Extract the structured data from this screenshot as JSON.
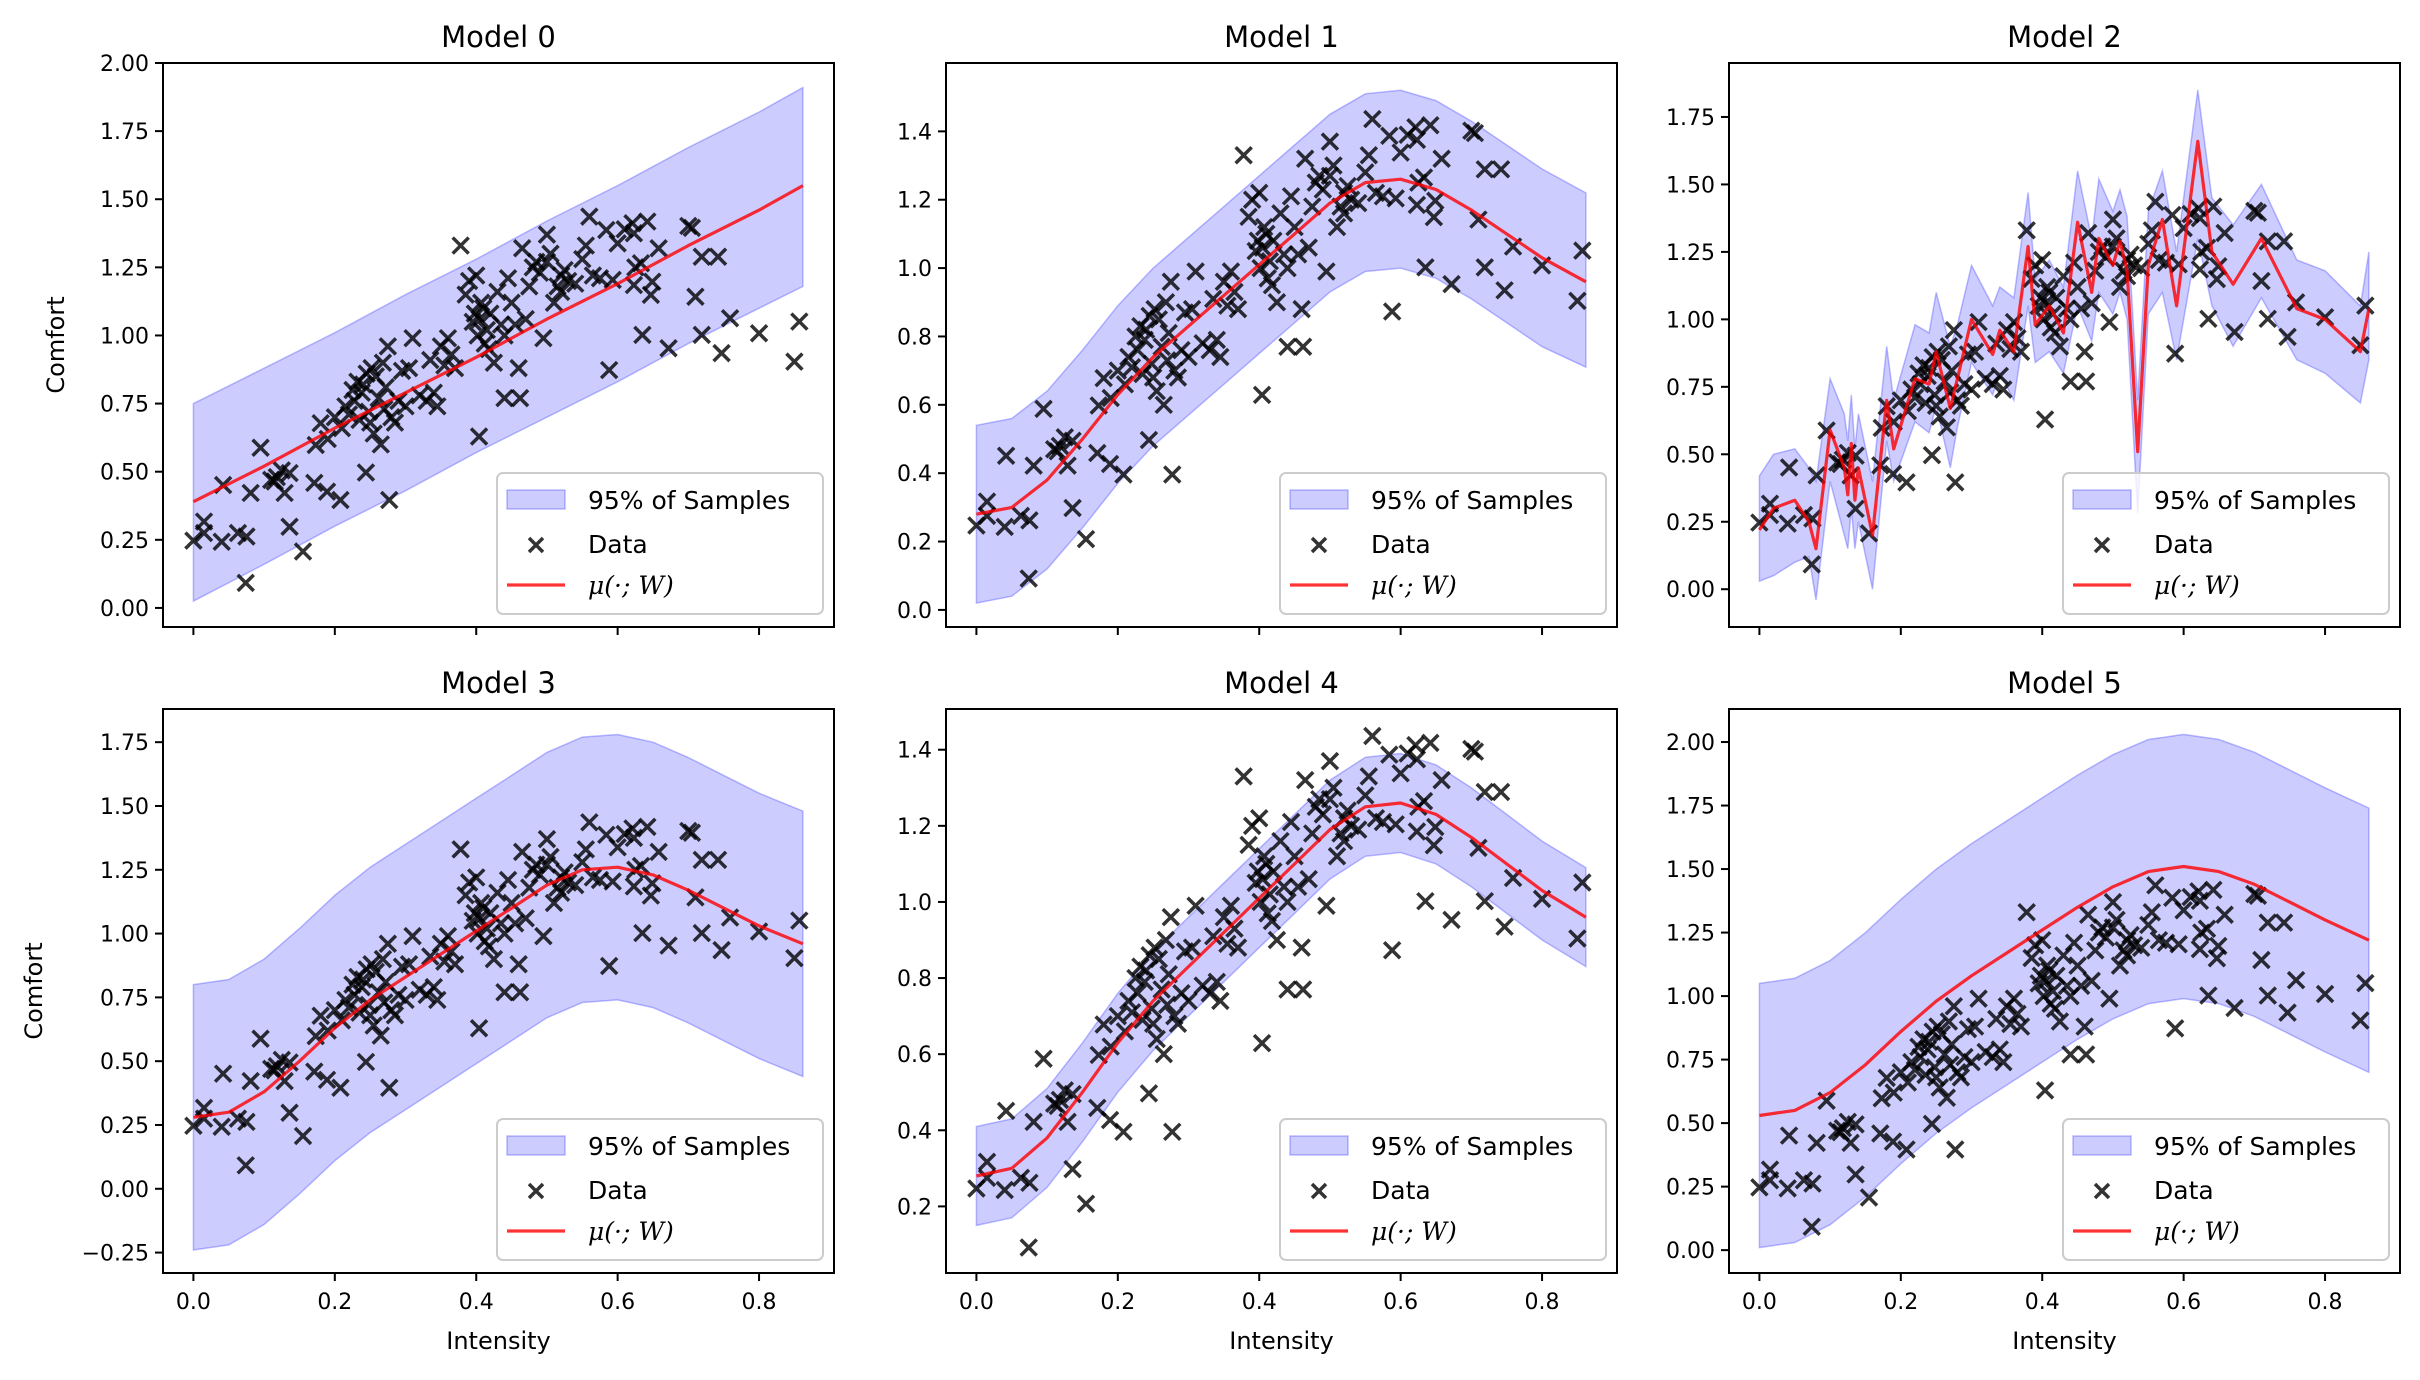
{
  "figure": {
    "type": "multi-panel scatter with mean line and 95% band",
    "xlabel": "Intensity",
    "ylabel": "Comfort"
  },
  "legend_labels": {
    "band": "95% of Samples",
    "data": "Data",
    "mean": "μ(·; W)"
  },
  "colors": {
    "band_fill": "#0000ff",
    "band_alpha": 0.2,
    "mean_line": "#ff0000",
    "data_marker": "#000000"
  },
  "chart_data": [
    {
      "type": "line",
      "title": "Model 0",
      "xlabel": "",
      "ylabel": "Comfort",
      "xlim": [
        -0.043,
        0.906
      ],
      "ylim": [
        -0.07,
        2.0
      ],
      "xticks": [
        0.0,
        0.2,
        0.4,
        0.6,
        0.8
      ],
      "xticklabels_visible": false,
      "yticks": [
        0.0,
        0.25,
        0.5,
        0.75,
        1.0,
        1.25,
        1.5,
        1.75,
        2.0
      ],
      "yticklabels": [
        "0.00",
        "0.25",
        "0.50",
        "0.75",
        "1.00",
        "1.25",
        "1.50",
        "1.75",
        "2.00"
      ],
      "legend": "lower-right",
      "curve": {
        "x": [
          0.0,
          0.1,
          0.2,
          0.3,
          0.4,
          0.5,
          0.6,
          0.7,
          0.8,
          0.862
        ],
        "mean": [
          0.39,
          0.52,
          0.66,
          0.79,
          0.92,
          1.06,
          1.19,
          1.33,
          1.46,
          1.55
        ],
        "lo": [
          0.025,
          0.16,
          0.3,
          0.43,
          0.57,
          0.7,
          0.83,
          0.97,
          1.1,
          1.18
        ],
        "hi": [
          0.75,
          0.88,
          1.01,
          1.15,
          1.28,
          1.42,
          1.55,
          1.69,
          1.82,
          1.91
        ]
      }
    },
    {
      "type": "line",
      "title": "Model 1",
      "xlabel": "",
      "ylabel": "",
      "xlim": [
        -0.043,
        0.906
      ],
      "ylim": [
        -0.05,
        1.6
      ],
      "xticks": [
        0.0,
        0.2,
        0.4,
        0.6,
        0.8
      ],
      "xticklabels_visible": false,
      "yticks": [
        0.0,
        0.2,
        0.4,
        0.6,
        0.8,
        1.0,
        1.2,
        1.4
      ],
      "yticklabels": [
        "0.0",
        "0.2",
        "0.4",
        "0.6",
        "0.8",
        "1.0",
        "1.2",
        "1.4"
      ],
      "legend": "lower-right",
      "curve": {
        "x": [
          0.0,
          0.05,
          0.1,
          0.15,
          0.2,
          0.25,
          0.3,
          0.35,
          0.4,
          0.45,
          0.5,
          0.55,
          0.6,
          0.65,
          0.7,
          0.75,
          0.8,
          0.862
        ],
        "mean": [
          0.28,
          0.3,
          0.38,
          0.5,
          0.63,
          0.74,
          0.83,
          0.92,
          1.01,
          1.1,
          1.19,
          1.25,
          1.26,
          1.23,
          1.17,
          1.1,
          1.03,
          0.96
        ],
        "lo": [
          0.02,
          0.04,
          0.12,
          0.24,
          0.37,
          0.48,
          0.57,
          0.66,
          0.75,
          0.84,
          0.93,
          0.99,
          1.0,
          0.97,
          0.91,
          0.84,
          0.77,
          0.71
        ],
        "hi": [
          0.54,
          0.56,
          0.64,
          0.76,
          0.89,
          1.0,
          1.09,
          1.18,
          1.27,
          1.36,
          1.45,
          1.51,
          1.52,
          1.49,
          1.43,
          1.36,
          1.29,
          1.22
        ]
      }
    },
    {
      "type": "line",
      "title": "Model 2",
      "xlabel": "",
      "ylabel": "",
      "xlim": [
        -0.043,
        0.906
      ],
      "ylim": [
        -0.14,
        1.95
      ],
      "xticks": [
        0.0,
        0.2,
        0.4,
        0.6,
        0.8
      ],
      "xticklabels_visible": false,
      "yticks": [
        0.0,
        0.25,
        0.5,
        0.75,
        1.0,
        1.25,
        1.5,
        1.75
      ],
      "yticklabels": [
        "0.00",
        "0.25",
        "0.50",
        "0.75",
        "1.00",
        "1.25",
        "1.50",
        "1.75"
      ],
      "legend": "lower-right",
      "curve": {
        "x": [
          0.0,
          0.02,
          0.05,
          0.07,
          0.08,
          0.1,
          0.12,
          0.125,
          0.13,
          0.135,
          0.14,
          0.16,
          0.18,
          0.19,
          0.22,
          0.24,
          0.25,
          0.27,
          0.28,
          0.3,
          0.33,
          0.34,
          0.36,
          0.38,
          0.39,
          0.41,
          0.43,
          0.45,
          0.47,
          0.48,
          0.5,
          0.51,
          0.52,
          0.535,
          0.55,
          0.57,
          0.59,
          0.62,
          0.64,
          0.67,
          0.71,
          0.76,
          0.8,
          0.85,
          0.862
        ],
        "mean": [
          0.22,
          0.3,
          0.33,
          0.25,
          0.15,
          0.59,
          0.45,
          0.35,
          0.54,
          0.33,
          0.45,
          0.2,
          0.7,
          0.52,
          0.78,
          0.76,
          0.88,
          0.67,
          0.78,
          1.0,
          0.87,
          0.96,
          0.88,
          1.27,
          0.98,
          1.05,
          0.95,
          1.36,
          1.1,
          1.3,
          1.2,
          1.29,
          1.18,
          0.51,
          1.2,
          1.37,
          1.05,
          1.66,
          1.25,
          1.13,
          1.3,
          1.04,
          1.0,
          0.88,
          1.04
        ],
        "lo": [
          0.03,
          0.05,
          0.1,
          0.12,
          -0.04,
          0.4,
          0.2,
          0.15,
          0.3,
          0.15,
          0.25,
          0.0,
          0.55,
          0.4,
          0.62,
          0.58,
          0.68,
          0.45,
          0.6,
          0.84,
          0.72,
          0.8,
          0.7,
          1.05,
          0.84,
          0.88,
          0.8,
          1.05,
          0.92,
          1.1,
          1.02,
          1.1,
          1.0,
          0.28,
          1.02,
          1.1,
          0.85,
          1.3,
          1.05,
          0.9,
          1.08,
          0.85,
          0.8,
          0.69,
          0.85
        ],
        "hi": [
          0.42,
          0.5,
          0.52,
          0.45,
          0.4,
          0.78,
          0.65,
          0.55,
          0.72,
          0.52,
          0.65,
          0.4,
          0.9,
          0.7,
          0.98,
          0.95,
          1.1,
          0.9,
          0.98,
          1.2,
          1.05,
          1.12,
          1.08,
          1.47,
          1.15,
          1.22,
          1.12,
          1.55,
          1.3,
          1.52,
          1.4,
          1.48,
          1.38,
          0.7,
          1.4,
          1.55,
          1.25,
          1.85,
          1.45,
          1.35,
          1.5,
          1.22,
          1.18,
          1.05,
          1.25
        ]
      }
    },
    {
      "type": "line",
      "title": "Model 3",
      "xlabel": "Intensity",
      "ylabel": "Comfort",
      "xlim": [
        -0.043,
        0.906
      ],
      "ylim": [
        -0.33,
        1.88
      ],
      "xticks": [
        0.0,
        0.2,
        0.4,
        0.6,
        0.8
      ],
      "xticklabels": [
        "0.0",
        "0.2",
        "0.4",
        "0.6",
        "0.8"
      ],
      "yticks": [
        -0.25,
        0.0,
        0.25,
        0.5,
        0.75,
        1.0,
        1.25,
        1.5,
        1.75
      ],
      "yticklabels": [
        "−0.25",
        "0.00",
        "0.25",
        "0.50",
        "0.75",
        "1.00",
        "1.25",
        "1.50",
        "1.75"
      ],
      "legend": "lower-right",
      "curve": {
        "x": [
          0.0,
          0.05,
          0.1,
          0.15,
          0.2,
          0.25,
          0.3,
          0.35,
          0.4,
          0.45,
          0.5,
          0.55,
          0.6,
          0.65,
          0.7,
          0.75,
          0.8,
          0.862
        ],
        "mean": [
          0.28,
          0.3,
          0.38,
          0.5,
          0.63,
          0.74,
          0.83,
          0.92,
          1.01,
          1.1,
          1.19,
          1.25,
          1.26,
          1.23,
          1.17,
          1.1,
          1.03,
          0.96
        ],
        "lo": [
          -0.24,
          -0.22,
          -0.14,
          -0.02,
          0.11,
          0.22,
          0.31,
          0.4,
          0.49,
          0.58,
          0.67,
          0.73,
          0.74,
          0.71,
          0.65,
          0.58,
          0.51,
          0.44
        ],
        "hi": [
          0.8,
          0.82,
          0.9,
          1.02,
          1.15,
          1.26,
          1.35,
          1.44,
          1.53,
          1.62,
          1.71,
          1.77,
          1.78,
          1.75,
          1.69,
          1.62,
          1.55,
          1.48
        ]
      }
    },
    {
      "type": "line",
      "title": "Model 4",
      "xlabel": "Intensity",
      "ylabel": "",
      "xlim": [
        -0.043,
        0.906
      ],
      "ylim": [
        0.025,
        1.507
      ],
      "xticks": [
        0.0,
        0.2,
        0.4,
        0.6,
        0.8
      ],
      "xticklabels": [
        "0.0",
        "0.2",
        "0.4",
        "0.6",
        "0.8"
      ],
      "yticks": [
        0.2,
        0.4,
        0.6,
        0.8,
        1.0,
        1.2,
        1.4
      ],
      "yticklabels": [
        "0.2",
        "0.4",
        "0.6",
        "0.8",
        "1.0",
        "1.2",
        "1.4"
      ],
      "legend": "lower-right",
      "curve": {
        "x": [
          0.0,
          0.05,
          0.1,
          0.15,
          0.2,
          0.25,
          0.3,
          0.35,
          0.4,
          0.45,
          0.5,
          0.55,
          0.6,
          0.65,
          0.7,
          0.75,
          0.8,
          0.862
        ],
        "mean": [
          0.28,
          0.3,
          0.38,
          0.5,
          0.63,
          0.74,
          0.83,
          0.92,
          1.01,
          1.1,
          1.19,
          1.25,
          1.26,
          1.23,
          1.17,
          1.1,
          1.03,
          0.96
        ],
        "lo": [
          0.15,
          0.17,
          0.25,
          0.37,
          0.5,
          0.61,
          0.7,
          0.79,
          0.88,
          0.97,
          1.06,
          1.12,
          1.13,
          1.1,
          1.04,
          0.97,
          0.9,
          0.83
        ],
        "hi": [
          0.41,
          0.43,
          0.51,
          0.63,
          0.76,
          0.87,
          0.96,
          1.05,
          1.14,
          1.23,
          1.32,
          1.38,
          1.39,
          1.36,
          1.3,
          1.23,
          1.16,
          1.09
        ]
      }
    },
    {
      "type": "line",
      "title": "Model 5",
      "xlabel": "Intensity",
      "ylabel": "",
      "xlim": [
        -0.043,
        0.906
      ],
      "ylim": [
        -0.09,
        2.13
      ],
      "xticks": [
        0.0,
        0.2,
        0.4,
        0.6,
        0.8
      ],
      "xticklabels": [
        "0.0",
        "0.2",
        "0.4",
        "0.6",
        "0.8"
      ],
      "yticks": [
        0.0,
        0.25,
        0.5,
        0.75,
        1.0,
        1.25,
        1.5,
        1.75,
        2.0
      ],
      "yticklabels": [
        "0.00",
        "0.25",
        "0.50",
        "0.75",
        "1.00",
        "1.25",
        "1.50",
        "1.75",
        "2.00"
      ],
      "legend": "lower-right",
      "curve": {
        "x": [
          0.0,
          0.05,
          0.1,
          0.15,
          0.2,
          0.25,
          0.3,
          0.35,
          0.4,
          0.45,
          0.5,
          0.55,
          0.6,
          0.65,
          0.7,
          0.75,
          0.8,
          0.862
        ],
        "mean": [
          0.53,
          0.55,
          0.62,
          0.73,
          0.86,
          0.98,
          1.08,
          1.17,
          1.26,
          1.35,
          1.43,
          1.49,
          1.51,
          1.49,
          1.44,
          1.37,
          1.3,
          1.22
        ],
        "lo": [
          0.01,
          0.03,
          0.1,
          0.21,
          0.34,
          0.46,
          0.56,
          0.65,
          0.74,
          0.83,
          0.91,
          0.97,
          0.99,
          0.97,
          0.92,
          0.85,
          0.78,
          0.7
        ],
        "hi": [
          1.05,
          1.07,
          1.14,
          1.25,
          1.38,
          1.5,
          1.6,
          1.69,
          1.78,
          1.87,
          1.95,
          2.01,
          2.03,
          2.01,
          1.96,
          1.89,
          1.82,
          1.74
        ]
      }
    }
  ],
  "data_points": {
    "x": [
      0.0,
      0.015,
      0.015,
      0.04,
      0.042,
      0.063,
      0.075,
      0.074,
      0.081,
      0.095,
      0.115,
      0.129,
      0.136,
      0.136,
      0.155,
      0.171,
      0.189,
      0.208,
      0.173,
      0.18,
      0.244,
      0.277,
      0.404,
      0.11,
      0.118,
      0.125,
      0.19,
      0.2,
      0.21,
      0.215,
      0.22,
      0.225,
      0.228,
      0.232,
      0.235,
      0.238,
      0.24,
      0.245,
      0.248,
      0.25,
      0.252,
      0.255,
      0.258,
      0.262,
      0.265,
      0.268,
      0.27,
      0.272,
      0.275,
      0.28,
      0.285,
      0.29,
      0.295,
      0.3,
      0.305,
      0.31,
      0.32,
      0.33,
      0.335,
      0.34,
      0.345,
      0.35,
      0.355,
      0.36,
      0.365,
      0.37,
      0.378,
      0.385,
      0.39,
      0.395,
      0.398,
      0.4,
      0.402,
      0.405,
      0.407,
      0.41,
      0.412,
      0.415,
      0.418,
      0.42,
      0.425,
      0.43,
      0.435,
      0.44,
      0.445,
      0.45,
      0.455,
      0.46,
      0.465,
      0.47,
      0.475,
      0.48,
      0.485,
      0.49,
      0.495,
      0.5,
      0.505,
      0.51,
      0.515,
      0.52,
      0.525,
      0.53,
      0.54,
      0.55,
      0.555,
      0.56,
      0.584,
      0.6,
      0.621,
      0.642,
      0.623,
      0.7,
      0.658,
      0.719,
      0.742,
      0.71,
      0.647,
      0.649,
      0.623,
      0.593,
      0.633,
      0.759,
      0.8,
      0.857,
      0.85,
      0.747,
      0.719,
      0.672,
      0.635,
      0.588,
      0.44,
      0.462,
      0.5,
      0.52,
      0.565,
      0.575,
      0.61,
      0.625,
      0.705
    ],
    "y": [
      0.247,
      0.317,
      0.275,
      0.243,
      0.451,
      0.275,
      0.262,
      0.092,
      0.422,
      0.588,
      0.464,
      0.422,
      0.495,
      0.298,
      0.207,
      0.459,
      0.427,
      0.396,
      0.598,
      0.678,
      0.497,
      0.396,
      0.629,
      0.47,
      0.48,
      0.505,
      0.62,
      0.7,
      0.66,
      0.74,
      0.71,
      0.8,
      0.76,
      0.83,
      0.69,
      0.79,
      0.82,
      0.86,
      0.72,
      0.68,
      0.88,
      0.64,
      0.85,
      0.77,
      0.6,
      0.9,
      0.73,
      0.81,
      0.96,
      0.7,
      0.68,
      0.76,
      0.87,
      0.74,
      0.88,
      0.99,
      0.78,
      0.76,
      0.91,
      0.79,
      0.74,
      0.96,
      0.89,
      0.99,
      0.93,
      0.88,
      1.33,
      1.15,
      1.2,
      1.05,
      1.08,
      1.22,
      1.0,
      1.06,
      1.12,
      1.1,
      0.97,
      1.02,
      0.95,
      1.08,
      0.9,
      1.16,
      1.04,
      1.0,
      1.21,
      1.12,
      1.04,
      0.88,
      1.32,
      1.06,
      1.18,
      1.25,
      1.27,
      1.23,
      0.99,
      1.37,
      1.3,
      1.12,
      1.18,
      1.22,
      1.24,
      1.2,
      1.19,
      1.28,
      1.33,
      1.436,
      1.387,
      1.338,
      1.412,
      1.418,
      1.375,
      1.402,
      1.32,
      1.289,
      1.289,
      1.142,
      1.149,
      1.197,
      1.185,
      1.204,
      1.265,
      1.063,
      1.008,
      1.051,
      0.904,
      0.935,
      1.002,
      0.953,
      1.002,
      0.873,
      0.77,
      0.77,
      1.27,
      1.16,
      1.22,
      1.21,
      1.39,
      1.25,
      1.395
    ]
  }
}
